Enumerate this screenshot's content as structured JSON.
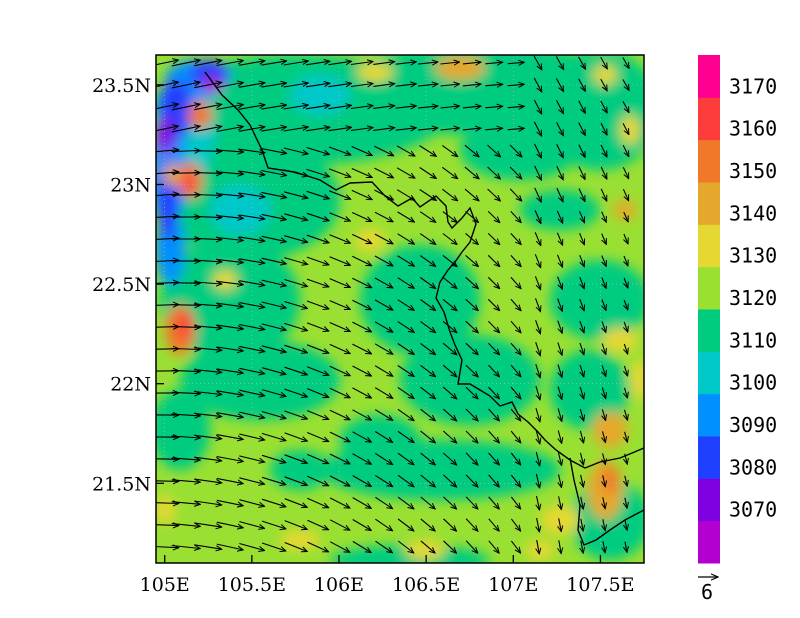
{
  "map": {
    "x_ticks": [
      "105E",
      "105.5E",
      "106E",
      "106.5E",
      "107E",
      "107.5E"
    ],
    "x_tick_values": [
      105,
      105.5,
      106,
      106.5,
      107,
      107.5
    ],
    "y_ticks": [
      "23.5N",
      "23N",
      "22.5N",
      "22N",
      "21.5N"
    ],
    "y_tick_values": [
      23.5,
      23,
      22.5,
      22,
      21.5
    ],
    "lon_range": [
      104.95,
      107.75
    ],
    "lat_range": [
      21.1,
      23.65
    ],
    "field_levels": [
      3060,
      3070,
      3080,
      3090,
      3100,
      3110,
      3120,
      3130,
      3140,
      3150,
      3160,
      3170,
      3180
    ],
    "dominant_range": [
      3110,
      3130
    ]
  },
  "colorbar": {
    "labels": [
      "3170",
      "3160",
      "3150",
      "3140",
      "3130",
      "3120",
      "3110",
      "3100",
      "3090",
      "3080",
      "3070"
    ],
    "colors_bottom_to_top": [
      "#b300d0",
      "#7f00e0",
      "#2040ff",
      "#0090ff",
      "#00c8c8",
      "#00cc80",
      "#99e032",
      "#e6d832",
      "#e6a82c",
      "#f07828",
      "#ff3c3c",
      "#ff0090"
    ]
  },
  "vector_reference": {
    "label": "6"
  },
  "colors": {
    "frame": "#000000",
    "grid": "#bbbbbb",
    "arrows": "#000000",
    "border": "#000000"
  }
}
